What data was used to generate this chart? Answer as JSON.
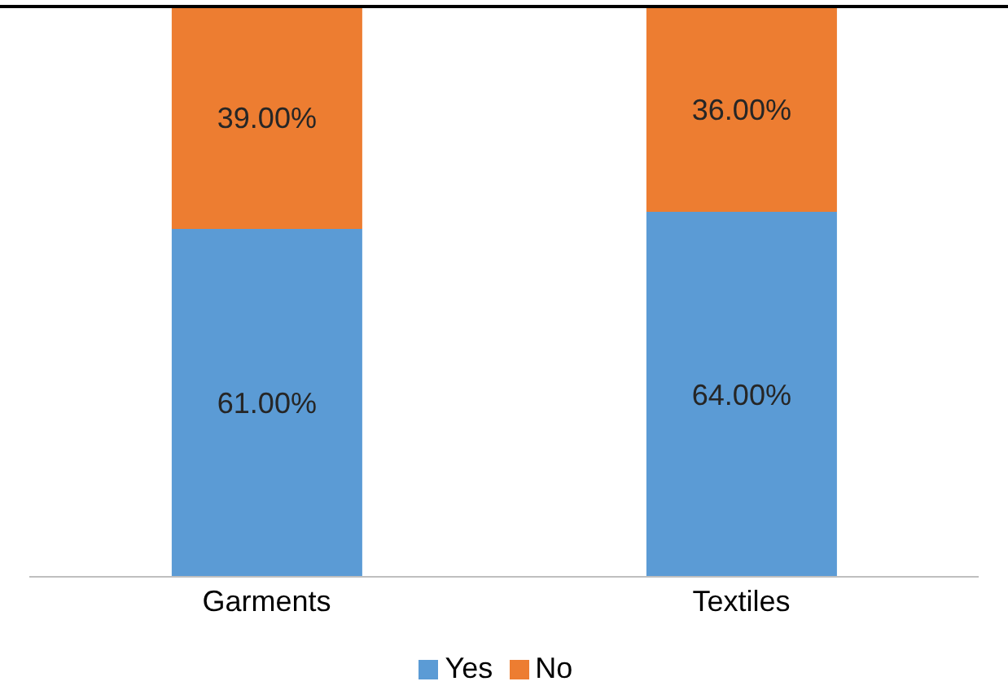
{
  "chart_data": {
    "type": "bar",
    "stacked": true,
    "ylim": [
      0,
      100
    ],
    "tick_labels": "x",
    "categories": [
      "Garments",
      "Textiles"
    ],
    "series": [
      {
        "name": "Yes",
        "color": "#5b9bd5",
        "values": [
          61,
          64
        ],
        "value_labels": [
          "61.00%",
          "64.00%"
        ]
      },
      {
        "name": "No",
        "color": "#ed7d31",
        "values": [
          39,
          36
        ],
        "value_labels": [
          "39.00%",
          "36.00%"
        ]
      }
    ],
    "legend": "bottom",
    "grid": false
  }
}
